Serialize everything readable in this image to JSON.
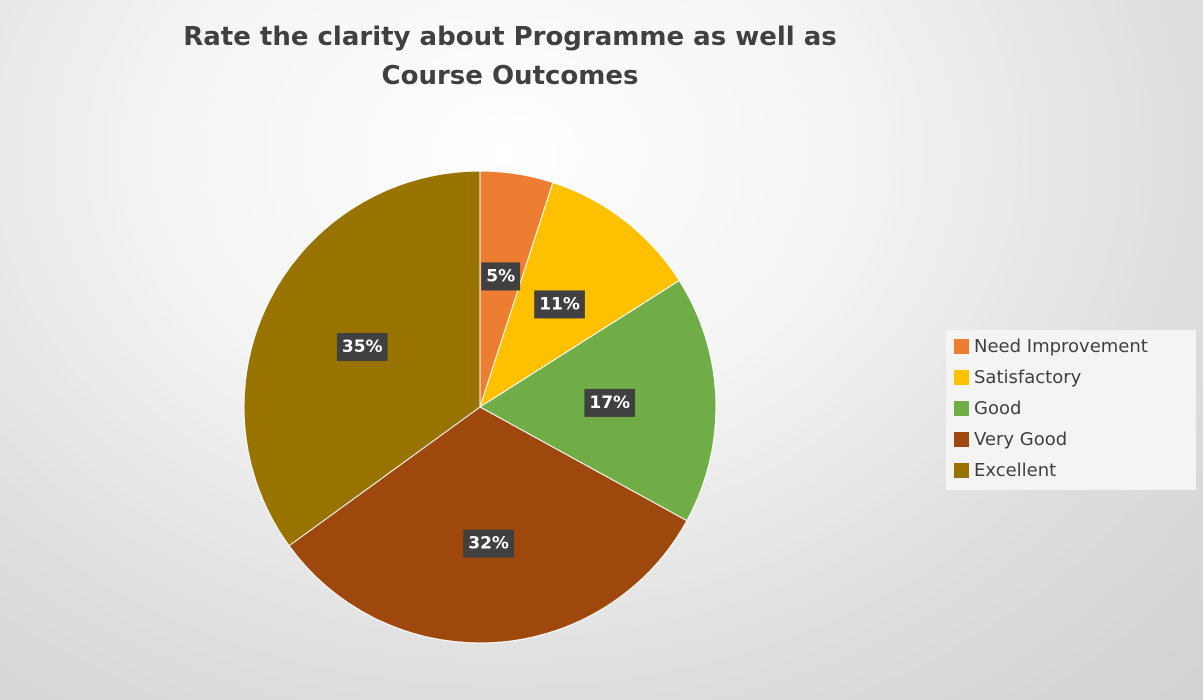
{
  "chart_data": {
    "type": "pie",
    "title": "Rate the clarity about Programme as well as Course Outcomes",
    "categories": [
      "Need Improvement",
      "Satisfactory",
      "Good",
      "Very Good",
      "Excellent"
    ],
    "values": [
      5,
      11,
      17,
      32,
      35
    ],
    "labels": [
      "5%",
      "11%",
      "17%",
      "32%",
      "35%"
    ],
    "colors": [
      "#ED7D31",
      "#FFC000",
      "#70AD47",
      "#9E480E",
      "#997300"
    ],
    "legend_position": "right",
    "data_label_style": "dark box, white bold text"
  }
}
